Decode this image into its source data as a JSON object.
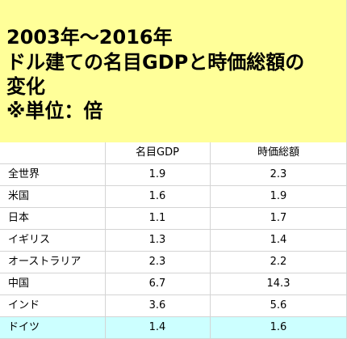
{
  "title": {
    "line1": "2003年～2016年",
    "line2": "ドル建ての名目GDPと時価総額の",
    "line3": "変化",
    "line4": "※単位：倍"
  },
  "table": {
    "headers": [
      "",
      "名目GDP",
      "時価総額"
    ],
    "rows": [
      {
        "name": "全世界",
        "gdp": "1.9",
        "mkt": "2.3"
      },
      {
        "name": "米国",
        "gdp": "1.6",
        "mkt": "1.9"
      },
      {
        "name": "日本",
        "gdp": "1.1",
        "mkt": "1.7"
      },
      {
        "name": "イギリス",
        "gdp": "1.3",
        "mkt": "1.4"
      },
      {
        "name": "オーストラリア",
        "gdp": "2.3",
        "mkt": "2.2"
      },
      {
        "name": "中国",
        "gdp": "6.7",
        "mkt": "14.3"
      },
      {
        "name": "インド",
        "gdp": "3.6",
        "mkt": "5.6"
      },
      {
        "name": "ドイツ",
        "gdp": "1.4",
        "mkt": "1.6"
      }
    ],
    "highlight_color": "#ccffff",
    "title_background": "#ffff99"
  }
}
